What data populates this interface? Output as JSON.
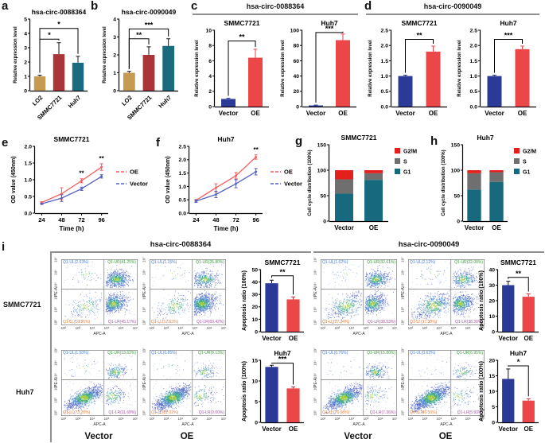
{
  "figure": {
    "background": "#ffffff",
    "panel_letters": {
      "a": "a",
      "b": "b",
      "c": "c",
      "d": "d",
      "e": "e",
      "f": "f",
      "g": "g",
      "h": "h",
      "i": "i"
    },
    "panel_c_title": "hsa-circ-0088364",
    "panel_d_title": "hsa-circ-0090049",
    "panel_i": {
      "group_titles": {
        "circ88": "hsa-circ-0088364",
        "circ90": "hsa-circ-0090049"
      },
      "row_labels": {
        "smmc": "SMMC7721",
        "huh7": "Huh7"
      },
      "condition_labels": {
        "vector": "Vector",
        "oe": "OE"
      }
    },
    "colors": {
      "bar_lo2": "#C59B51",
      "bar_smmc": "#A93539",
      "bar_huh7": "#1A6B7E",
      "bar_vector": "#2B3A97",
      "bar_oe": "#EB4648",
      "line_oe": "#F15F5C",
      "line_vector": "#5661C2",
      "g2m": "#E3201B",
      "s_phase": "#6F6F6F",
      "g1": "#17697E"
    },
    "flow_common": {
      "xlabel": "APC-A",
      "ylabel": "PE-A",
      "ticks": [
        "10²",
        "10³",
        "10⁴",
        "10⁵",
        "10⁶",
        "10⁷"
      ]
    }
  },
  "chart_data": [
    {
      "id": "a",
      "type": "bar",
      "title": "hsa-circ-0088364",
      "ylabel": "Relative expression level",
      "categories": [
        "LO2",
        "SMMC7721",
        "Huh7"
      ],
      "values": [
        1.0,
        2.55,
        1.95
      ],
      "errors": [
        0.08,
        0.8,
        0.45
      ],
      "colors": [
        "#C59B51",
        "#A93539",
        "#1A6B7E"
      ],
      "ylim": [
        0,
        5
      ],
      "yticks": [
        "0",
        "1",
        "2",
        "3",
        "4",
        "5"
      ],
      "x_rotate": true,
      "sig": [
        {
          "a": 0,
          "b": 1,
          "y": 3.6,
          "label": "*"
        },
        {
          "a": 0,
          "b": 2,
          "y": 4.35,
          "label": "*"
        }
      ]
    },
    {
      "id": "b",
      "type": "bar",
      "title": "hsa-circ-0090049",
      "ylabel": "Relative expression level",
      "categories": [
        "LO2",
        "SMMC7721",
        "Huh7"
      ],
      "values": [
        1.0,
        2.0,
        2.5
      ],
      "errors": [
        0.08,
        0.45,
        0.4
      ],
      "colors": [
        "#C59B51",
        "#A93539",
        "#1A6B7E"
      ],
      "ylim": [
        0,
        4
      ],
      "yticks": [
        "0",
        "1",
        "2",
        "3",
        "4"
      ],
      "x_rotate": true,
      "sig": [
        {
          "a": 0,
          "b": 1,
          "y": 2.9,
          "label": "**"
        },
        {
          "a": 0,
          "b": 2,
          "y": 3.45,
          "label": "***"
        }
      ]
    },
    {
      "id": "c_smmc",
      "type": "bar",
      "title": "SMMC7721",
      "ylabel": "Relative expression level",
      "categories": [
        "Vector",
        "OE"
      ],
      "values": [
        1.0,
        6.4
      ],
      "errors": [
        0.1,
        1.1
      ],
      "colors": [
        "#2B3A97",
        "#EB4648"
      ],
      "err_colors": [
        "#2B3A97",
        "#EB4648"
      ],
      "ylim": [
        0,
        10
      ],
      "yticks": [
        "0",
        "2",
        "4",
        "6",
        "8",
        "10"
      ],
      "sig": [
        {
          "a": 0,
          "b": 1,
          "y": 8.6,
          "label": "**"
        }
      ]
    },
    {
      "id": "c_huh7",
      "type": "bar",
      "title": "Huh7",
      "ylabel": "Relative expression level",
      "categories": [
        "Vector",
        "OE"
      ],
      "values": [
        1.5,
        87
      ],
      "errors": [
        0.5,
        8
      ],
      "colors": [
        "#2B3A97",
        "#EB4648"
      ],
      "err_colors": [
        "#2B3A97",
        "#EB4648"
      ],
      "ylim": [
        0,
        100
      ],
      "yticks": [
        "0",
        "20",
        "40",
        "60",
        "80",
        "100"
      ],
      "sig": [
        {
          "a": 0,
          "b": 1,
          "y": 97,
          "label": "***"
        }
      ]
    },
    {
      "id": "d_smmc",
      "type": "bar",
      "title": "SMMC7721",
      "ylabel": "Relative expression level",
      "categories": [
        "Vector",
        "OE"
      ],
      "values": [
        1.0,
        1.8
      ],
      "errors": [
        0.03,
        0.18
      ],
      "colors": [
        "#2B3A97",
        "#EB4648"
      ],
      "err_colors": [
        "#2B3A97",
        "#EB4648"
      ],
      "ylim": [
        0,
        2.5
      ],
      "yticks": [
        "0.0",
        "0.5",
        "1.0",
        "1.5",
        "2.0",
        "2.5"
      ],
      "sig": [
        {
          "a": 0,
          "b": 1,
          "y": 2.2,
          "label": "**"
        }
      ]
    },
    {
      "id": "d_huh7",
      "type": "bar",
      "title": "Huh7",
      "ylabel": "Relative expression level",
      "categories": [
        "Vector",
        "OE"
      ],
      "values": [
        1.0,
        1.88
      ],
      "errors": [
        0.03,
        0.1
      ],
      "colors": [
        "#2B3A97",
        "#EB4648"
      ],
      "err_colors": [
        "#2B3A97",
        "#EB4648"
      ],
      "ylim": [
        0,
        2.5
      ],
      "yticks": [
        "0.0",
        "0.5",
        "1.0",
        "1.5",
        "2.0",
        "2.5"
      ],
      "sig": [
        {
          "a": 0,
          "b": 1,
          "y": 2.2,
          "label": "***"
        }
      ]
    },
    {
      "id": "e",
      "type": "line",
      "title": "SMMC7721",
      "xlabel": "Time (h)",
      "ylabel": "OD value (450nm)",
      "x": [
        24,
        48,
        72,
        96
      ],
      "xtick_labels": [
        "24",
        "48",
        "72",
        "96"
      ],
      "xlim": [
        16,
        104
      ],
      "ylim": [
        0,
        2.0
      ],
      "yticks": [
        "0.0",
        "0.5",
        "1.0",
        "1.5",
        "2.0"
      ],
      "series": [
        {
          "name": "OE",
          "color": "#F15F5C",
          "values": [
            0.32,
            0.58,
            0.97,
            1.38
          ],
          "errors": [
            0.02,
            0.18,
            0.06,
            0.1
          ]
        },
        {
          "name": "Vector",
          "color": "#5661C2",
          "values": [
            0.28,
            0.45,
            0.73,
            1.1
          ],
          "errors": [
            0.02,
            0.1,
            0.05,
            0.05
          ]
        }
      ],
      "sig": [
        {
          "series": 0,
          "xi": 2,
          "label": "**"
        },
        {
          "series": 0,
          "xi": 3,
          "label": "**"
        }
      ]
    },
    {
      "id": "f",
      "type": "line",
      "title": "Huh7",
      "xlabel": "Time (h)",
      "ylabel": "OD value (450nm)",
      "x": [
        24,
        48,
        72,
        96
      ],
      "xtick_labels": [
        "24",
        "48",
        "72",
        "96"
      ],
      "xlim": [
        16,
        104
      ],
      "ylim": [
        0,
        2.5
      ],
      "yticks": [
        "0.0",
        "0.5",
        "1.0",
        "1.5",
        "2.0",
        "2.5"
      ],
      "series": [
        {
          "name": "OE",
          "color": "#F15F5C",
          "values": [
            0.48,
            0.95,
            1.4,
            2.1
          ],
          "errors": [
            0.03,
            0.15,
            0.12,
            0.08
          ]
        },
        {
          "name": "Vector",
          "color": "#5661C2",
          "values": [
            0.45,
            0.7,
            1.1,
            1.55
          ],
          "errors": [
            0.05,
            0.12,
            0.15,
            0.12
          ]
        }
      ],
      "sig": [
        {
          "series": 0,
          "xi": 3,
          "label": "**"
        }
      ]
    },
    {
      "id": "g",
      "type": "stacked_bar",
      "title": "SMMC7721",
      "ylabel": "Cell cycle distribution (100%)",
      "categories": [
        "Vector",
        "OE"
      ],
      "ylim": [
        0,
        150
      ],
      "yticks": [
        "0",
        "50",
        "100",
        "150"
      ],
      "series": [
        {
          "name": "G1",
          "color": "#17697E",
          "values": [
            54,
            81
          ]
        },
        {
          "name": "S",
          "color": "#6F6F6F",
          "values": [
            28,
            13
          ]
        },
        {
          "name": "G2/M",
          "color": "#E3201B",
          "values": [
            18,
            6
          ]
        }
      ]
    },
    {
      "id": "h",
      "type": "stacked_bar",
      "title": "Huh7",
      "ylabel": "Cell cycle distribution (100%)",
      "categories": [
        "Vector",
        "OE"
      ],
      "ylim": [
        0,
        150
      ],
      "yticks": [
        "0",
        "50",
        "100",
        "150"
      ],
      "series": [
        {
          "name": "G1",
          "color": "#17697E",
          "values": [
            62,
            77
          ]
        },
        {
          "name": "S",
          "color": "#6F6F6F",
          "values": [
            32,
            19
          ]
        },
        {
          "name": "G2/M",
          "color": "#E3201B",
          "values": [
            6,
            4
          ]
        }
      ]
    },
    {
      "id": "apop_88_smmc",
      "type": "bar",
      "title": "SMMC7721",
      "ylabel": "Apoptosis ratio (100%)",
      "categories": [
        "Vector",
        "OE"
      ],
      "values": [
        39,
        26
      ],
      "errors": [
        2.5,
        2
      ],
      "colors": [
        "#2B3A97",
        "#EB4648"
      ],
      "err_colors": [
        "#111111",
        "#C53436"
      ],
      "ylim": [
        0,
        50
      ],
      "yticks": [
        "0",
        "10",
        "20",
        "30",
        "40",
        "50"
      ],
      "sig": [
        {
          "a": 0,
          "b": 1,
          "y": 45,
          "label": "**"
        }
      ]
    },
    {
      "id": "apop_88_huh7",
      "type": "bar",
      "title": "Huh7",
      "ylabel": "Apoptosis ratio (100%)",
      "categories": [
        "Vector",
        "OE"
      ],
      "values": [
        13.4,
        8.2
      ],
      "errors": [
        0.4,
        0.35
      ],
      "colors": [
        "#2B3A97",
        "#EB4648"
      ],
      "err_colors": [
        "#111111",
        "#C53436"
      ],
      "ylim": [
        0,
        15
      ],
      "yticks": [
        "0",
        "5",
        "10",
        "15"
      ],
      "sig": [
        {
          "a": 0,
          "b": 1,
          "y": 14.3,
          "label": "***"
        }
      ]
    },
    {
      "id": "apop_90_smmc",
      "type": "bar",
      "title": "SMMC7721",
      "ylabel": "Apoptosis ratio (100%)",
      "categories": [
        "Vector",
        "OE"
      ],
      "values": [
        30,
        22.5
      ],
      "errors": [
        2.5,
        1.8
      ],
      "colors": [
        "#2B3A97",
        "#EB4648"
      ],
      "err_colors": [
        "#111111",
        "#C53436"
      ],
      "ylim": [
        0,
        40
      ],
      "yticks": [
        "0",
        "10",
        "20",
        "30",
        "40"
      ],
      "sig": [
        {
          "a": 0,
          "b": 1,
          "y": 35,
          "label": "**"
        }
      ]
    },
    {
      "id": "apop_90_huh7",
      "type": "bar",
      "title": "Huh7",
      "ylabel": "Apoptosis ratio (100%)",
      "categories": [
        "Vector",
        "OE"
      ],
      "values": [
        14,
        7
      ],
      "errors": [
        3.2,
        0.6
      ],
      "colors": [
        "#2B3A97",
        "#EB4648"
      ],
      "err_colors": [
        "#111111",
        "#C53436"
      ],
      "ylim": [
        0,
        20
      ],
      "yticks": [
        "0",
        "5",
        "10",
        "15",
        "20"
      ],
      "sig": [
        {
          "a": 0,
          "b": 1,
          "y": 18.2,
          "label": "*"
        }
      ]
    },
    {
      "id": "flow_88_smmc_vector",
      "type": "flow_scatter",
      "cluster_preset": "smmc",
      "quadrant_labels": {
        "ul": "Q1-UL(2.63%)",
        "ur": "Q1-UR(41.25%)",
        "ll": "Q1-LL(10.95%)",
        "lr": "Q1-LR(45.17%)"
      }
    },
    {
      "id": "flow_88_smmc_oe",
      "type": "flow_scatter",
      "cluster_preset": "smmc",
      "quadrant_labels": {
        "ul": "Q1-UL(1.15%)",
        "ur": "Q1-UR(25.80%)",
        "ll": "Q1-LL(12.63%)",
        "lr": "Q1-LR(60.42%)"
      }
    },
    {
      "id": "flow_90_smmc_vector",
      "type": "flow_scatter",
      "cluster_preset": "smmc",
      "quadrant_labels": {
        "ul": "Q1-UL(1.62%)",
        "ur": "Q1-UR(32.61%)",
        "ll": "Q1-LL(27.24%)",
        "lr": "Q1-LR(38.53%)"
      }
    },
    {
      "id": "flow_90_smmc_oe",
      "type": "flow_scatter",
      "cluster_preset": "smmc",
      "quadrant_labels": {
        "ul": "Q1-UL(2.12%)",
        "ur": "Q1-UR(22.08%)",
        "ll": "Q1-LL(37.50%)",
        "lr": "Q1-LR(38.30%)"
      }
    },
    {
      "id": "flow_88_huh7_vector",
      "type": "flow_scatter",
      "cluster_preset": "huh7",
      "quadrant_labels": {
        "ul": "Q1-UL(1.50%)",
        "ur": "Q1-UR(13.62%)",
        "ll": "Q1-LL(73.20%)",
        "lr": "Q1-LR(11.68%)"
      }
    },
    {
      "id": "flow_88_huh7_oe",
      "type": "flow_scatter",
      "cluster_preset": "huh7",
      "quadrant_labels": {
        "ul": "Q1-UL(0.85%)",
        "ur": "Q1-UR(8.13%)",
        "ll": "Q1-LL(82.02%)",
        "lr": "Q1-LR(9.00%)"
      }
    },
    {
      "id": "flow_90_huh7_vector",
      "type": "flow_scatter",
      "cluster_preset": "huh7",
      "quadrant_labels": {
        "ul": "Q1-UL(0.76%)",
        "ur": "Q1-UR(15.80%)",
        "ll": "Q1-LL(76.08%)",
        "lr": "Q1-LR(7.36%)"
      }
    },
    {
      "id": "flow_90_huh7_oe",
      "type": "flow_scatter",
      "cluster_preset": "huh7",
      "quadrant_labels": {
        "ul": "Q1-UL(0.62%)",
        "ur": "Q1-UR(6.95%)",
        "ll": "Q1-LL(86.50%)",
        "lr": "Q1-LR(5.93%)"
      }
    }
  ]
}
